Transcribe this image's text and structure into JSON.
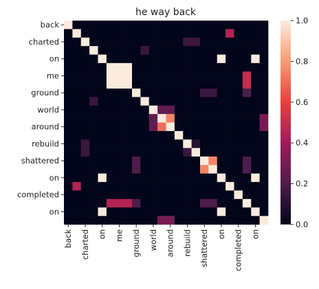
{
  "chart_data": {
    "type": "heatmap",
    "title": "he way back",
    "categories": [
      "back",
      null,
      "charted",
      null,
      "on",
      null,
      "me",
      null,
      "ground",
      null,
      "world",
      null,
      "around",
      null,
      "rebuild",
      null,
      "shattered",
      null,
      "on",
      null,
      "completed",
      null,
      "on",
      null
    ],
    "values": [
      [
        1,
        0,
        0,
        0,
        0,
        0,
        0,
        0,
        0,
        0,
        0,
        0,
        0,
        0,
        0,
        0,
        0,
        0,
        0,
        0,
        0,
        0,
        0,
        0
      ],
      [
        0,
        1,
        0,
        0,
        0,
        0,
        0,
        0,
        0,
        0,
        0,
        0,
        0,
        0,
        0,
        0,
        0,
        0,
        0,
        0.45,
        0,
        0,
        0,
        0
      ],
      [
        0,
        0,
        1,
        0,
        0,
        0,
        0,
        0,
        0,
        0,
        0,
        0,
        0,
        0,
        0.15,
        0.15,
        0,
        0,
        0,
        0,
        0,
        0,
        0,
        0
      ],
      [
        0,
        0,
        0,
        1,
        0,
        0,
        0,
        0,
        0,
        0.15,
        0,
        0,
        0,
        0,
        0,
        0,
        0,
        0,
        0,
        0,
        0,
        0,
        0,
        0
      ],
      [
        0,
        0,
        0,
        0,
        1,
        0,
        0,
        0,
        0,
        0,
        0,
        0,
        0,
        0,
        0,
        0,
        0,
        0,
        1,
        0,
        0,
        0,
        1,
        0
      ],
      [
        0,
        0,
        0,
        0,
        0,
        1,
        1,
        1,
        0,
        0,
        0,
        0,
        0,
        0,
        0,
        0,
        0,
        0,
        0,
        0,
        0,
        0,
        0,
        0
      ],
      [
        0,
        0,
        0,
        0,
        0,
        1,
        1,
        1,
        0,
        0,
        0,
        0,
        0,
        0,
        0,
        0,
        0,
        0,
        0,
        0,
        0,
        0.5,
        0,
        0
      ],
      [
        0,
        0,
        0,
        0,
        0,
        1,
        1,
        1,
        0,
        0,
        0,
        0,
        0,
        0,
        0,
        0,
        0,
        0,
        0,
        0,
        0,
        0.5,
        0,
        0
      ],
      [
        0,
        0,
        0,
        0,
        0,
        0,
        0,
        0,
        1,
        0,
        0,
        0,
        0,
        0,
        0,
        0,
        0.15,
        0.15,
        0,
        0,
        0,
        0.2,
        0,
        0
      ],
      [
        0,
        0,
        0,
        0.15,
        0,
        0,
        0,
        0,
        0,
        1,
        0,
        0,
        0,
        0,
        0,
        0,
        0,
        0,
        0,
        0,
        0,
        0,
        0,
        0
      ],
      [
        0,
        0,
        0,
        0,
        0,
        0,
        0,
        0,
        0,
        0,
        1,
        0.25,
        0.25,
        0,
        0,
        0,
        0,
        0,
        0,
        0,
        0,
        0,
        0,
        0
      ],
      [
        0,
        0,
        0,
        0,
        0,
        0,
        0,
        0,
        0,
        0,
        0.25,
        1,
        0.75,
        0,
        0,
        0,
        0,
        0,
        0,
        0,
        0,
        0,
        0,
        0.3
      ],
      [
        0,
        0,
        0,
        0,
        0,
        0,
        0,
        0,
        0,
        0,
        0.25,
        0.7,
        1,
        0,
        0,
        0,
        0,
        0,
        0,
        0,
        0,
        0,
        0,
        0.3
      ],
      [
        0,
        0,
        0,
        0,
        0,
        0,
        0,
        0,
        0,
        0,
        0,
        0,
        0,
        1,
        0,
        0,
        0,
        0,
        0,
        0,
        0,
        0,
        0,
        0
      ],
      [
        0,
        0,
        0.15,
        0,
        0,
        0,
        0,
        0,
        0,
        0,
        0,
        0,
        0,
        0,
        1,
        0.1,
        0,
        0,
        0,
        0,
        0,
        0,
        0,
        0
      ],
      [
        0,
        0,
        0.15,
        0,
        0,
        0,
        0,
        0,
        0,
        0,
        0,
        0,
        0,
        0,
        0.15,
        1,
        0,
        0,
        0,
        0,
        0,
        0,
        0,
        0
      ],
      [
        0,
        0,
        0,
        0,
        0,
        0,
        0,
        0,
        0.2,
        0,
        0,
        0,
        0,
        0,
        0,
        0,
        1,
        0.75,
        0,
        0,
        0,
        0.2,
        0,
        0
      ],
      [
        0,
        0,
        0,
        0,
        0,
        0,
        0,
        0,
        0.2,
        0,
        0,
        0,
        0,
        0,
        0,
        0,
        0.75,
        1,
        0,
        0,
        0,
        0.2,
        0,
        0
      ],
      [
        0,
        0,
        0,
        0,
        1,
        0,
        0,
        0,
        0,
        0,
        0,
        0,
        0,
        0,
        0,
        0,
        0,
        0,
        1,
        0,
        0,
        0,
        1,
        0
      ],
      [
        0,
        0.45,
        0,
        0,
        0,
        0,
        0,
        0,
        0,
        0,
        0,
        0,
        0,
        0,
        0,
        0,
        0,
        0,
        0,
        1,
        0,
        0,
        0,
        0
      ],
      [
        0,
        0,
        0,
        0,
        0,
        0,
        0,
        0,
        0,
        0,
        0,
        0,
        0,
        0,
        0,
        0,
        0,
        0,
        0,
        0,
        1,
        0,
        0,
        0
      ],
      [
        0,
        0,
        0,
        0,
        0,
        0.45,
        0.45,
        0.45,
        0.2,
        0,
        0,
        0,
        0,
        0,
        0,
        0,
        0.2,
        0.2,
        0,
        0,
        0,
        1,
        0,
        0
      ],
      [
        0,
        0,
        0,
        0,
        1,
        0,
        0,
        0,
        0,
        0,
        0,
        0,
        0,
        0,
        0,
        0,
        0,
        0,
        1,
        0,
        0,
        0,
        1,
        0
      ],
      [
        0,
        0,
        0,
        0,
        0,
        0,
        0,
        0,
        0,
        0,
        0,
        0.3,
        0.3,
        0,
        0,
        0,
        0,
        0,
        0,
        0,
        0,
        0,
        0,
        1
      ]
    ],
    "clim": [
      0,
      1
    ],
    "cticks": [
      {
        "value": 0,
        "label": "0.0"
      },
      {
        "value": 0.2,
        "label": "0.2"
      },
      {
        "value": 0.4,
        "label": "0.4"
      },
      {
        "value": 0.6,
        "label": "0.6"
      },
      {
        "value": 0.8,
        "label": "0.8"
      },
      {
        "value": 1,
        "label": "1.0"
      }
    ],
    "colorscale": [
      "#03051a",
      "#4c1d4b",
      "#a11a5b",
      "#e83f3f",
      "#f69c73",
      "#faebdd"
    ]
  }
}
